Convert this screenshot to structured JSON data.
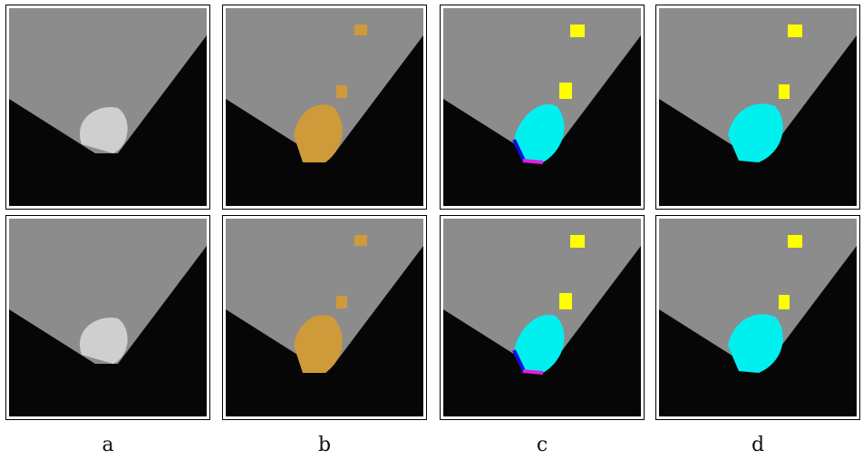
{
  "captions": [
    "a",
    "b",
    "c",
    "d"
  ],
  "colors": {
    "background_dark": "#060606",
    "tissue_gray": "#8c8c8c",
    "bright_region": "#d6d6d6",
    "segmentation_orange": "#cf9a3a",
    "segmentation_cyan": "#00f0f0",
    "segmentation_yellow": "#ffff00",
    "segmentation_blue": "#1010e0",
    "segmentation_magenta": "#e020e0"
  },
  "panels": [
    {
      "row": "top",
      "col": "a",
      "style": "grayscale"
    },
    {
      "row": "top",
      "col": "b",
      "style": "orange-overlay"
    },
    {
      "row": "top",
      "col": "c",
      "style": "multiclass-overlay"
    },
    {
      "row": "top",
      "col": "d",
      "style": "cyan-overlay"
    },
    {
      "row": "bottom",
      "col": "a",
      "style": "grayscale"
    },
    {
      "row": "bottom",
      "col": "b",
      "style": "orange-overlay"
    },
    {
      "row": "bottom",
      "col": "c",
      "style": "multiclass-overlay"
    },
    {
      "row": "bottom",
      "col": "d",
      "style": "cyan-overlay"
    }
  ]
}
